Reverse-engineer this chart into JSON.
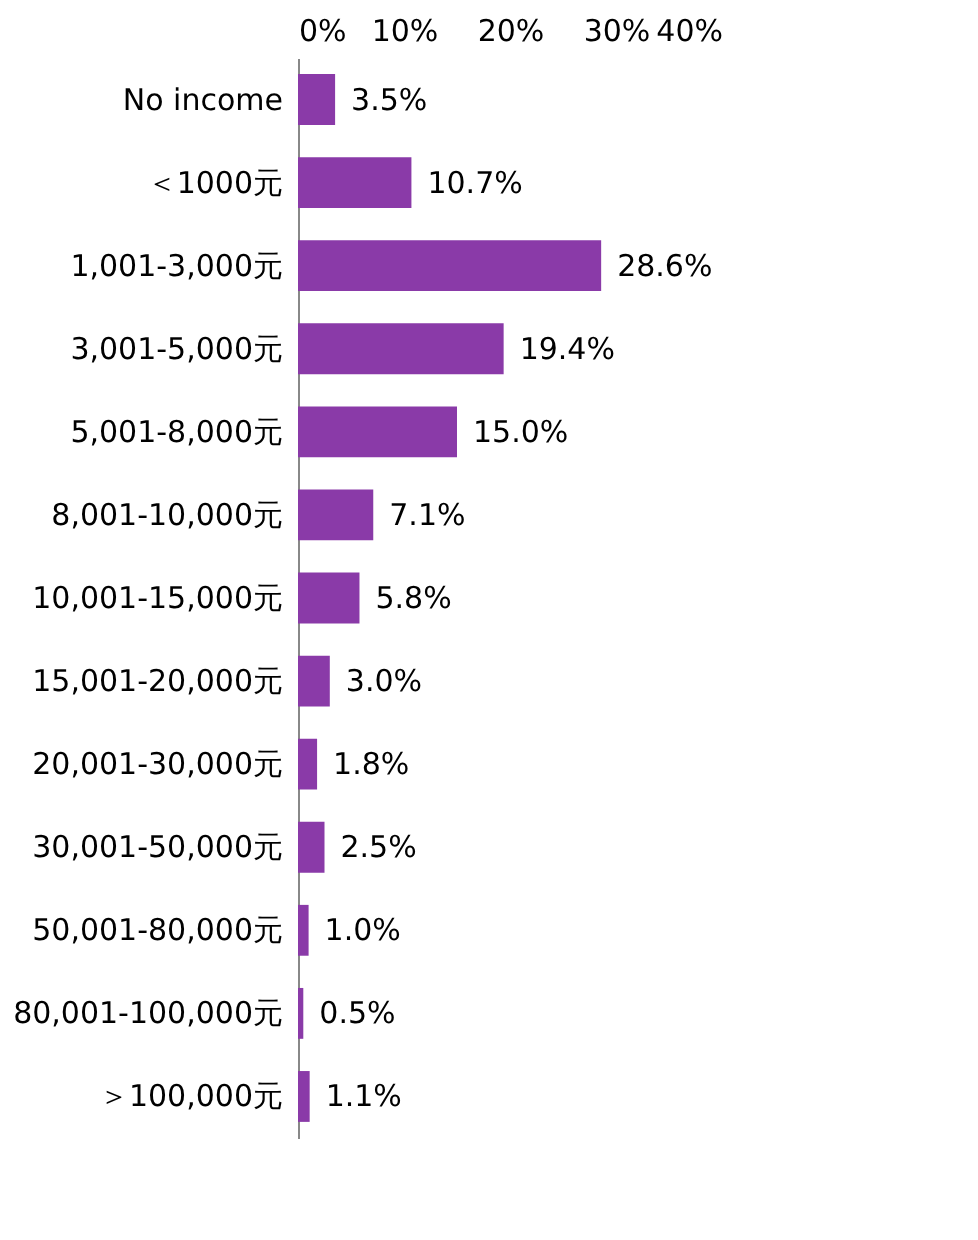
{
  "chart_data": {
    "type": "bar",
    "orientation": "horizontal",
    "categories": [
      "No income",
      "＜1000元",
      "1,001-3,000元",
      "3,001-5,000元",
      "5,001-8,000元",
      "8,001-10,000元",
      "10,001-15,000元",
      "15,001-20,000元",
      "20,001-30,000元",
      "30,001-50,000元",
      "50,001-80,000元",
      "80,001-100,000元",
      "＞100,000元"
    ],
    "values": [
      3.5,
      10.7,
      28.6,
      19.4,
      15.0,
      7.1,
      5.8,
      3.0,
      1.8,
      2.5,
      1.0,
      0.5,
      1.1
    ],
    "value_labels": [
      "3.5%",
      "10.7%",
      "28.6%",
      "19.4%",
      "15.0%",
      "7.1%",
      "5.8%",
      "3.0%",
      "1.8%",
      "2.5%",
      "1.0%",
      "0.5%",
      "1.1%"
    ],
    "color": "#8a3aa8",
    "xlim": [
      0,
      40
    ],
    "xticks": [
      {
        "value": 0,
        "label": "0%"
      },
      {
        "value": 10,
        "label": "10%"
      },
      {
        "value": 20,
        "label": "20%"
      },
      {
        "value": 30,
        "label": "30%"
      },
      {
        "value": 40,
        "label": "40%"
      }
    ],
    "grid": false
  }
}
